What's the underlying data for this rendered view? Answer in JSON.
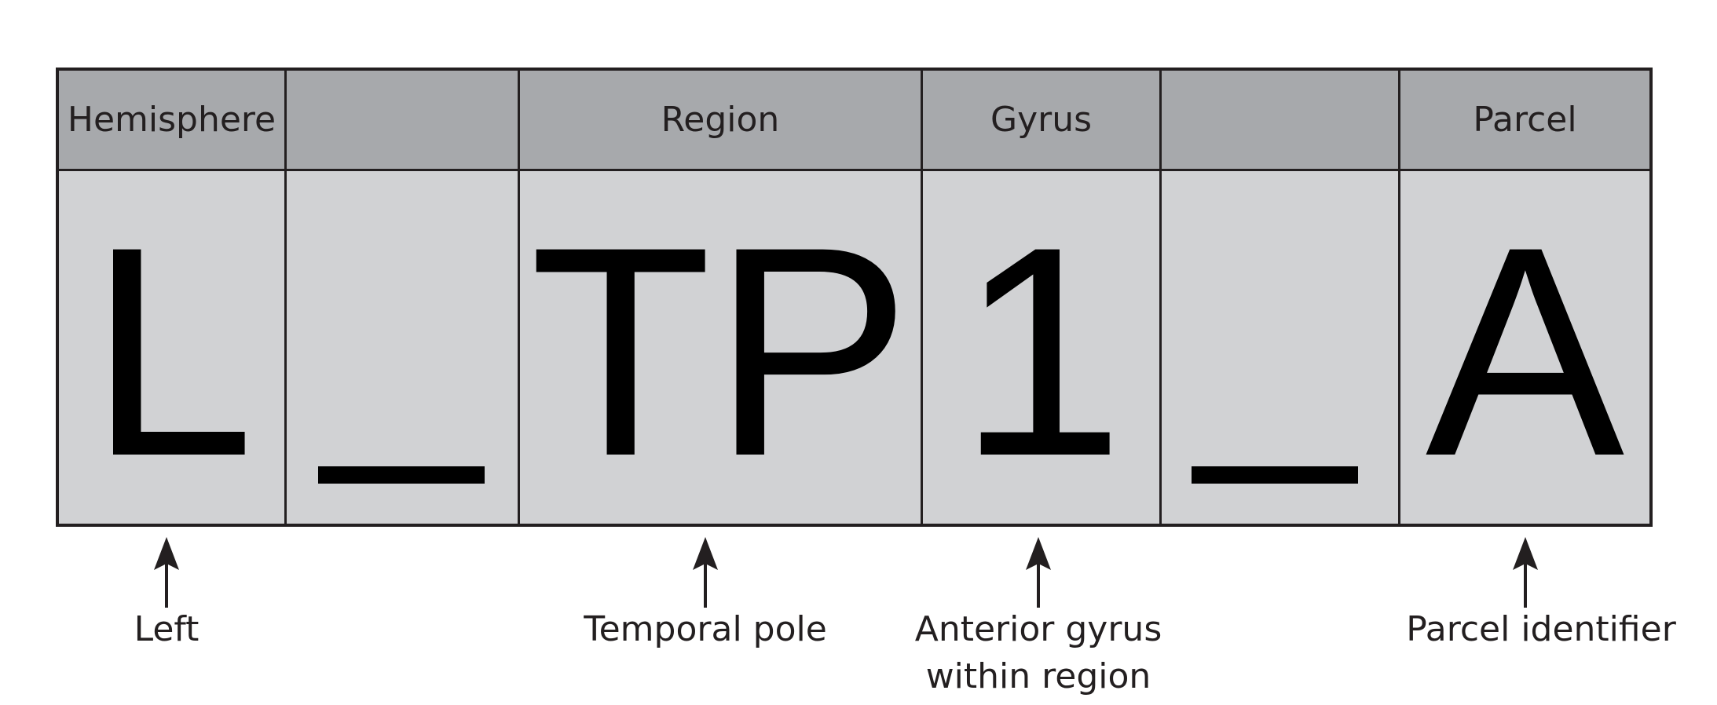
{
  "columns": [
    {
      "key": "hemisphere",
      "header": "Hemisphere",
      "value": "L"
    },
    {
      "key": "separator1",
      "header": "",
      "value": "_"
    },
    {
      "key": "region",
      "header": "Region",
      "value": "TP"
    },
    {
      "key": "gyrus",
      "header": "Gyrus",
      "value": "1"
    },
    {
      "key": "separator2",
      "header": "",
      "value": "_"
    },
    {
      "key": "parcel",
      "header": "Parcel",
      "value": "A"
    }
  ],
  "annotations": {
    "hemisphere": "Left",
    "region": "Temporal pole",
    "gyrus_line1": "Anterior gyrus",
    "gyrus_line2": "within region",
    "parcel": "Parcel identifier"
  },
  "colors": {
    "header_fill": "#a7a9ac",
    "cell_fill": "#d1d2d4",
    "border": "#231f20",
    "glyph": "#000000"
  }
}
